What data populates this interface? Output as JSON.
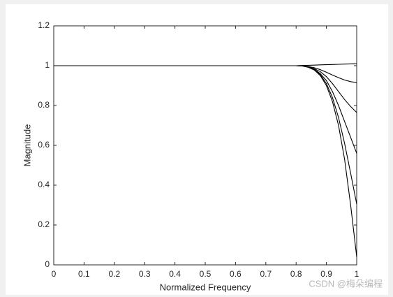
{
  "chart_data": {
    "type": "line",
    "xlabel": "Normalized Frequency",
    "ylabel": "Magnitude",
    "x": [
      0,
      0.1,
      0.2,
      0.3,
      0.4,
      0.5,
      0.6,
      0.7,
      0.8,
      0.82,
      0.84,
      0.86,
      0.88,
      0.9,
      0.92,
      0.94,
      0.96,
      0.98,
      1
    ],
    "series": [
      {
        "color": "#000000",
        "values": [
          1,
          1,
          1,
          1,
          1,
          1,
          1,
          1,
          1,
          1.001,
          1.002,
          1.003,
          1.004,
          1.005,
          1.006,
          1.007,
          1.008,
          1.009,
          1.01
        ]
      },
      {
        "color": "#000000",
        "values": [
          1,
          1,
          1,
          1,
          1,
          1,
          1,
          1,
          1,
          0.999,
          0.996,
          0.99,
          0.98,
          0.967,
          0.953,
          0.94,
          0.928,
          0.92,
          0.915
        ]
      },
      {
        "color": "#000000",
        "values": [
          1,
          1,
          1,
          1,
          1,
          1,
          1,
          1,
          1,
          0.999,
          0.995,
          0.985,
          0.97,
          0.945,
          0.91,
          0.87,
          0.83,
          0.795,
          0.765
        ]
      },
      {
        "color": "#000000",
        "values": [
          1,
          1,
          1,
          1,
          1,
          1,
          1,
          1,
          1,
          0.999,
          0.994,
          0.982,
          0.96,
          0.925,
          0.87,
          0.8,
          0.72,
          0.64,
          0.56
        ]
      },
      {
        "color": "#000000",
        "values": [
          1,
          1,
          1,
          1,
          1,
          1,
          1,
          1,
          1,
          0.999,
          0.993,
          0.98,
          0.955,
          0.91,
          0.84,
          0.74,
          0.61,
          0.46,
          0.305
        ]
      },
      {
        "color": "#000000",
        "values": [
          1,
          1,
          1,
          1,
          1,
          1,
          1,
          1,
          1,
          0.999,
          0.992,
          0.978,
          0.95,
          0.9,
          0.82,
          0.7,
          0.53,
          0.3,
          0.04
        ]
      }
    ],
    "xlim": [
      0,
      1
    ],
    "xticks": [
      0,
      0.1,
      0.2,
      0.3,
      0.4,
      0.5,
      0.6,
      0.7,
      0.8,
      0.9,
      1
    ],
    "ylim": [
      0,
      1.2
    ],
    "yticks": [
      0,
      0.2,
      0.4,
      0.6,
      0.8,
      1,
      1.2
    ],
    "grid": false,
    "watermark": "CSDN @梅朵编程"
  }
}
